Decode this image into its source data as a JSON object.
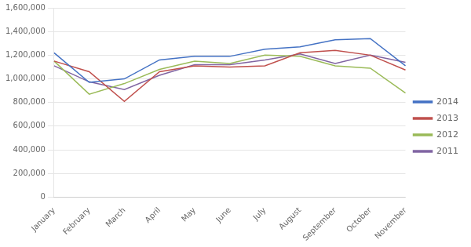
{
  "chart_data": {
    "type": "line",
    "categories": [
      "January",
      "February",
      "March",
      "April",
      "May",
      "June",
      "July",
      "August",
      "September",
      "October",
      "November"
    ],
    "series": [
      {
        "name": "2014",
        "color": "#4472C4",
        "values": [
          1220000,
          970000,
          1000000,
          1160000,
          1190000,
          1190000,
          1250000,
          1270000,
          1330000,
          1340000,
          1110000
        ]
      },
      {
        "name": "2013",
        "color": "#C0504D",
        "values": [
          1150000,
          1060000,
          810000,
          1060000,
          1110000,
          1100000,
          1110000,
          1220000,
          1240000,
          1200000,
          1075000
        ]
      },
      {
        "name": "2012",
        "color": "#9BBB59",
        "values": [
          1150000,
          870000,
          960000,
          1080000,
          1150000,
          1130000,
          1200000,
          1190000,
          1110000,
          1090000,
          880000
        ]
      },
      {
        "name": "2011",
        "color": "#8064A2",
        "values": [
          1110000,
          975000,
          910000,
          1030000,
          1120000,
          1120000,
          1160000,
          1210000,
          1130000,
          1200000,
          1140000
        ]
      }
    ],
    "ylim": [
      0,
      1600000
    ],
    "yticks": [
      0,
      {
        "value": 200000,
        "label": "200,000"
      },
      {
        "value": 400000,
        "label": "400,000"
      },
      {
        "value": 600000,
        "label": "600,000"
      },
      {
        "value": 800000,
        "label": "800,000"
      },
      {
        "value": 1000000,
        "label": "1,000,000"
      },
      {
        "value": 1200000,
        "label": "1,200,000"
      },
      {
        "value": 1400000,
        "label": "1,400,000"
      },
      {
        "value": 1600000,
        "label": "1,600,000"
      }
    ],
    "grid": true,
    "legend": "right"
  }
}
